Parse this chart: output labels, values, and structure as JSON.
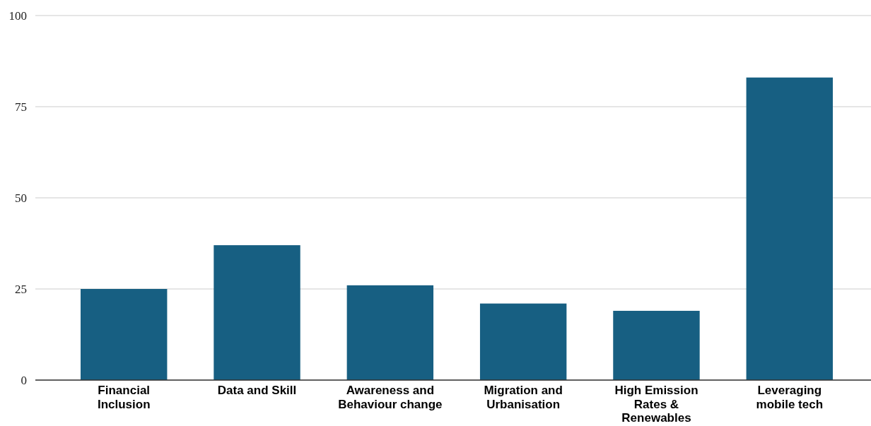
{
  "chart_data": {
    "type": "bar",
    "categories": [
      "Financial Inclusion",
      "Data and Skill",
      "Awareness and Behaviour change",
      "Migration and Urbanisation",
      "High Emission Rates & Renewables",
      "Leveraging mobile tech"
    ],
    "values": [
      25,
      37,
      26,
      21,
      19,
      83
    ],
    "color": "#175f82",
    "ylim": [
      0,
      100
    ],
    "yticks": [
      0,
      25,
      50,
      75,
      100
    ],
    "grid": "y"
  }
}
